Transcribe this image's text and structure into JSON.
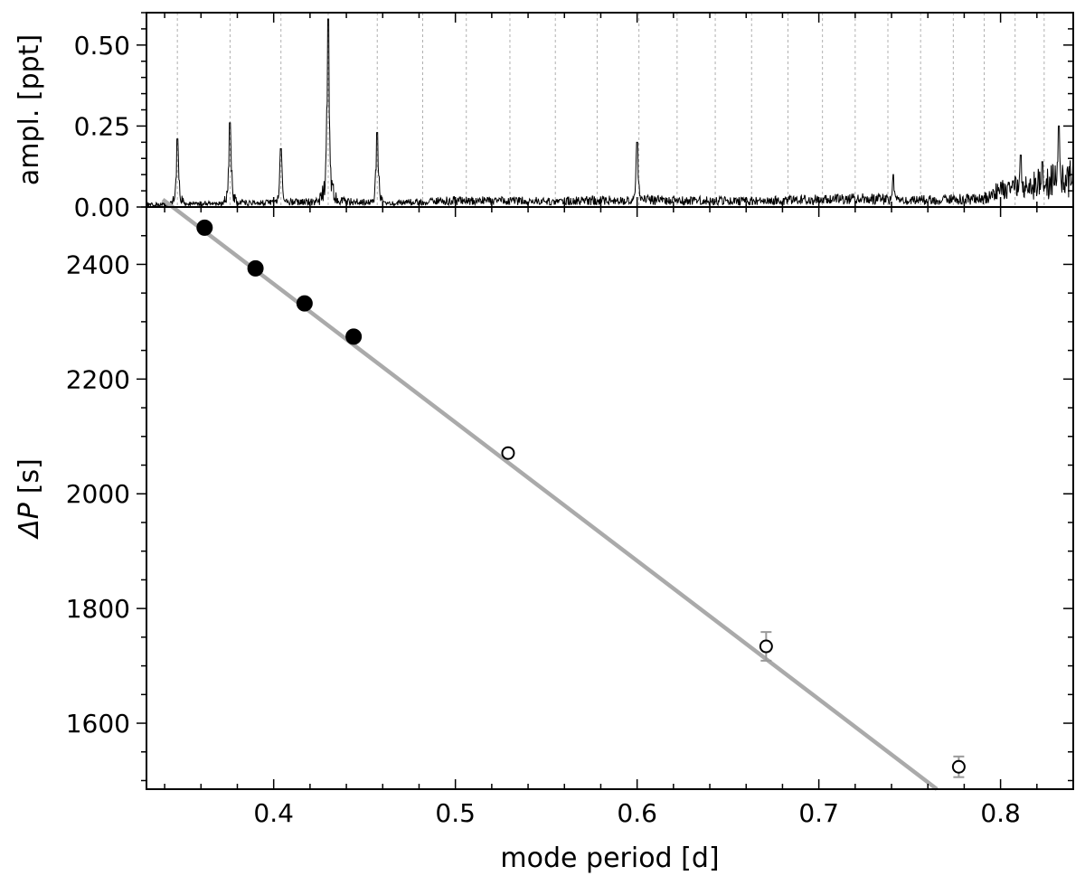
{
  "chart_data": [
    {
      "type": "line",
      "panel": "top",
      "ylabel": "ampl. [ppt]",
      "xlim": [
        0.33,
        0.84
      ],
      "ylim": [
        0.0,
        0.6
      ],
      "yticks": [
        0.0,
        0.25,
        0.5
      ],
      "ytick_labels": [
        "0.00",
        "0.25",
        "0.50"
      ],
      "series": [
        {
          "line_color": "#000000",
          "baseline_noise": 0.012,
          "envelope": [
            [
              0.33,
              0.008
            ],
            [
              0.44,
              0.018
            ],
            [
              0.46,
              0.012
            ],
            [
              0.5,
              0.02
            ],
            [
              0.55,
              0.018
            ],
            [
              0.6,
              0.022
            ],
            [
              0.66,
              0.018
            ],
            [
              0.72,
              0.025
            ],
            [
              0.76,
              0.022
            ],
            [
              0.79,
              0.025
            ],
            [
              0.8,
              0.05
            ],
            [
              0.84,
              0.09
            ]
          ],
          "peaks": [
            {
              "x": 0.347,
              "y": 0.21
            },
            {
              "x": 0.376,
              "y": 0.26
            },
            {
              "x": 0.404,
              "y": 0.18
            },
            {
              "x": 0.43,
              "y": 0.58
            },
            {
              "x": 0.457,
              "y": 0.23
            },
            {
              "x": 0.6,
              "y": 0.2
            },
            {
              "x": 0.741,
              "y": 0.1
            },
            {
              "x": 0.811,
              "y": 0.16
            },
            {
              "x": 0.823,
              "y": 0.14
            },
            {
              "x": 0.832,
              "y": 0.25
            }
          ]
        }
      ],
      "vlines": [
        0.347,
        0.376,
        0.404,
        0.43,
        0.457,
        0.482,
        0.506,
        0.53,
        0.555,
        0.578,
        0.601,
        0.622,
        0.643,
        0.663,
        0.683,
        0.702,
        0.72,
        0.738,
        0.756,
        0.774,
        0.791,
        0.808,
        0.824
      ],
      "vline_color": "#b0b0b0"
    },
    {
      "type": "scatter",
      "panel": "bottom",
      "xlabel": "mode period [d]",
      "ylabel_symbol": "ΔP",
      "ylabel_unit": "[s]",
      "xlim": [
        0.33,
        0.84
      ],
      "ylim": [
        1485,
        2500
      ],
      "xticks": [
        0.4,
        0.5,
        0.6,
        0.7,
        0.8
      ],
      "xtick_labels": [
        "0.4",
        "0.5",
        "0.6",
        "0.7",
        "0.8"
      ],
      "yticks": [
        1600,
        1800,
        2000,
        2200,
        2400
      ],
      "ytick_labels": [
        "1600",
        "1800",
        "2000",
        "2200",
        "2400"
      ],
      "series": [
        {
          "marker": "filled",
          "points": [
            [
              0.362,
              2464
            ],
            [
              0.39,
              2393
            ],
            [
              0.417,
              2332
            ],
            [
              0.444,
              2274
            ]
          ]
        },
        {
          "marker": "open",
          "points": [
            [
              0.529,
              2071
            ],
            [
              0.671,
              1734
            ],
            [
              0.777,
              1524
            ]
          ],
          "errors": [
            0,
            25,
            18
          ]
        }
      ],
      "fit_line": {
        "x": [
          0.339,
          0.765
        ],
        "y": [
          2513,
          1485
        ],
        "color": "#aaaaaa"
      },
      "errorbar_color": "#999999"
    }
  ]
}
